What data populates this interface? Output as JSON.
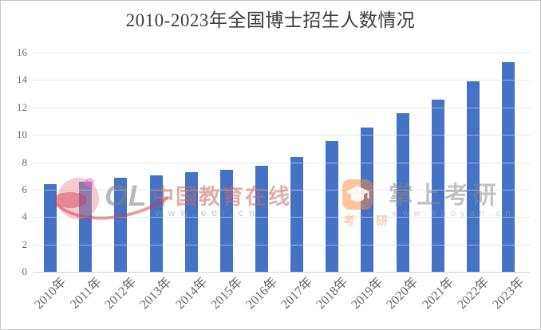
{
  "chart_data": {
    "type": "bar",
    "title": "2010-2023年全国博士招生人数情况",
    "categories": [
      "2010年",
      "2011年",
      "2012年",
      "2013年",
      "2014年",
      "2015年",
      "2016年",
      "2017年",
      "2018年",
      "2019年",
      "2020年",
      "2021年",
      "2022年",
      "2023年"
    ],
    "values": [
      6.38,
      6.56,
      6.84,
      7.05,
      7.26,
      7.44,
      7.73,
      8.39,
      9.55,
      10.52,
      11.6,
      12.58,
      13.9,
      15.33
    ],
    "ylim": [
      0,
      16
    ],
    "yticks": [
      0,
      2,
      4,
      6,
      8,
      10,
      12,
      14,
      16
    ],
    "xlabel": "",
    "ylabel": "",
    "grid": true,
    "legend": false,
    "x_tick_rotation": 45,
    "bar_color": "#4472c4"
  },
  "watermarks": {
    "eol": {
      "logo_letters": "OL",
      "brand": "中国教育在线",
      "url": "www.eol.cn"
    },
    "kaoyan": {
      "brand": "掌上考研",
      "url": "www.kaoyan.cn",
      "icon_caption": "考 研"
    }
  },
  "colors": {
    "bar": "#4472c4",
    "gridline": "#e2e2e2",
    "axis_text": "#6b6b6b",
    "title_text": "#3d3d3d",
    "background": "#ffffff"
  }
}
